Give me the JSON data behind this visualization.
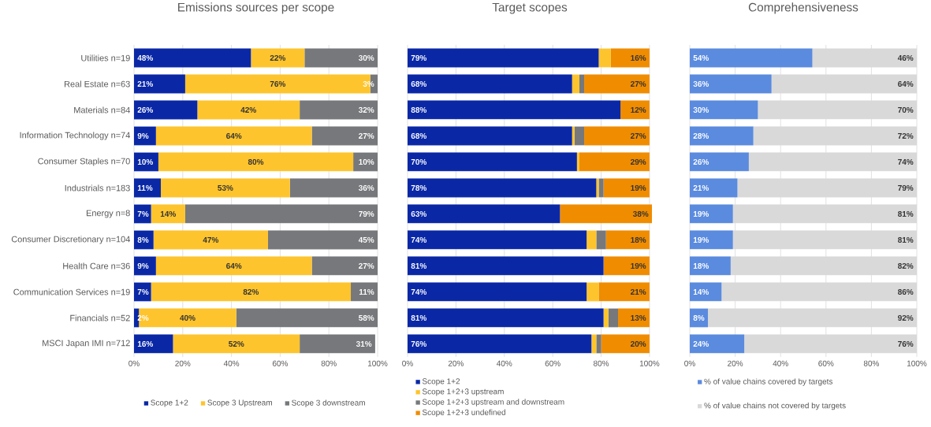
{
  "chart_data": [
    {
      "type": "bar",
      "orientation": "horizontal",
      "stacked": true,
      "title": "Emissions sources per scope",
      "categories": [
        "Utilities n=19",
        "Real Estate n=63",
        "Materials n=84",
        "Information Technology n=74",
        "Consumer Staples n=70",
        "Industrials n=183",
        "Energy n=8",
        "Consumer Discretionary n=104",
        "Health Care n=36",
        "Communication Services n=19",
        "Financials n=52",
        "MSCI Japan IMI n=712"
      ],
      "series": [
        {
          "name": "Scope 1+2",
          "color": "#0a28a6",
          "values": [
            48,
            21,
            26,
            9,
            10,
            11,
            7,
            8,
            9,
            7,
            2,
            16
          ],
          "value_labels": [
            "48%",
            "21%",
            "26%",
            "9%",
            "10%",
            "11%",
            "7%",
            "8%",
            "9%",
            "7%",
            "2%",
            "16%"
          ]
        },
        {
          "name": "Scope 3 Upstream",
          "color": "#fec42d",
          "values": [
            22,
            76,
            42,
            64,
            80,
            53,
            14,
            47,
            64,
            82,
            40,
            52
          ],
          "value_labels": [
            "22%",
            "76%",
            "42%",
            "64%",
            "80%",
            "53%",
            "14%",
            "47%",
            "64%",
            "82%",
            "40%",
            "52%"
          ]
        },
        {
          "name": "Scope 3 downstream",
          "color": "#76787b",
          "values": [
            30,
            3,
            32,
            27,
            10,
            36,
            79,
            45,
            27,
            11,
            58,
            31
          ],
          "value_labels": [
            "30%",
            "3%",
            "32%",
            "27%",
            "10%",
            "36%",
            "79%",
            "45%",
            "27%",
            "11%",
            "58%",
            "31%"
          ]
        }
      ],
      "xlim": [
        0,
        100
      ],
      "xticks": [
        {
          "value": 0,
          "label": "0%"
        },
        {
          "value": 20,
          "label": "20%"
        },
        {
          "value": 40,
          "label": "40%"
        },
        {
          "value": 60,
          "label": "60%"
        },
        {
          "value": 80,
          "label": "80%"
        },
        {
          "value": 100,
          "label": "100%"
        }
      ],
      "grid": "x",
      "legend": "bottom"
    },
    {
      "type": "bar",
      "orientation": "horizontal",
      "stacked": true,
      "title": "Target scopes",
      "categories": [
        null,
        null,
        null,
        null,
        null,
        null,
        null,
        null,
        null,
        null,
        null,
        null
      ],
      "series": [
        {
          "name": "Scope 1+2",
          "color": "#0a28a6",
          "values": [
            79,
            68,
            88,
            68,
            70,
            78,
            63,
            74,
            81,
            74,
            81,
            76
          ],
          "value_labels": [
            "79%",
            "68%",
            "88%",
            "68%",
            "70%",
            "78%",
            "63%",
            "74%",
            "81%",
            "74%",
            "81%",
            "76%"
          ]
        },
        {
          "name": "Scope 1+2+3 upstream",
          "color": "#fec42d",
          "values": [
            5,
            3,
            0,
            1,
            1,
            1,
            0,
            4,
            0,
            5,
            2,
            2
          ],
          "value_labels": [
            null,
            null,
            null,
            null,
            null,
            null,
            null,
            null,
            null,
            null,
            null,
            null
          ]
        },
        {
          "name": "Scope 1+2+3 upstream and downstream",
          "color": "#76787b",
          "values": [
            0,
            2,
            0,
            4,
            0,
            2,
            0,
            4,
            0,
            0,
            4,
            2
          ],
          "value_labels": [
            null,
            null,
            null,
            null,
            null,
            null,
            null,
            null,
            null,
            null,
            null,
            null
          ]
        },
        {
          "name": "Scope 1+2+3 undefined",
          "color": "#f08c00",
          "values": [
            16,
            27,
            12,
            27,
            29,
            19,
            38,
            18,
            19,
            21,
            13,
            20
          ],
          "value_labels": [
            "16%",
            "27%",
            "12%",
            "27%",
            "29%",
            "19%",
            "38%",
            "18%",
            "19%",
            "21%",
            "13%",
            "20%"
          ]
        }
      ],
      "xlim": [
        0,
        101
      ],
      "xticks": [
        {
          "value": 0,
          "label": "0%"
        },
        {
          "value": 20,
          "label": "20%"
        },
        {
          "value": 40,
          "label": "40%"
        },
        {
          "value": 60,
          "label": "60%"
        },
        {
          "value": 80,
          "label": "80%"
        },
        {
          "value": 100,
          "label": "100%"
        }
      ],
      "grid": "x",
      "legend": "bottom"
    },
    {
      "type": "bar",
      "orientation": "horizontal",
      "stacked": true,
      "title": "Comprehensiveness",
      "categories": [
        null,
        null,
        null,
        null,
        null,
        null,
        null,
        null,
        null,
        null,
        null,
        null
      ],
      "series": [
        {
          "name": "% of value chains covered by targets",
          "color": "#5b8bde",
          "values": [
            54,
            36,
            30,
            28,
            26,
            21,
            19,
            19,
            18,
            14,
            8,
            24
          ],
          "value_labels": [
            "54%",
            "36%",
            "30%",
            "28%",
            "26%",
            "21%",
            "19%",
            "19%",
            "18%",
            "14%",
            "8%",
            "24%"
          ]
        },
        {
          "name": "% of value chains not covered by targets",
          "color": "#d9d9d9",
          "values": [
            46,
            64,
            70,
            72,
            74,
            79,
            81,
            81,
            82,
            86,
            92,
            76
          ],
          "value_labels": [
            "46%",
            "64%",
            "70%",
            "72%",
            "74%",
            "79%",
            "81%",
            "81%",
            "82%",
            "86%",
            "92%",
            "76%"
          ]
        }
      ],
      "xlim": [
        0,
        100
      ],
      "xticks": [
        {
          "value": 0,
          "label": "0%"
        },
        {
          "value": 20,
          "label": "20%"
        },
        {
          "value": 40,
          "label": "40%"
        },
        {
          "value": 60,
          "label": "60%"
        },
        {
          "value": 80,
          "label": "80%"
        },
        {
          "value": 100,
          "label": "100%"
        }
      ],
      "grid": "x",
      "legend": "bottom"
    }
  ]
}
